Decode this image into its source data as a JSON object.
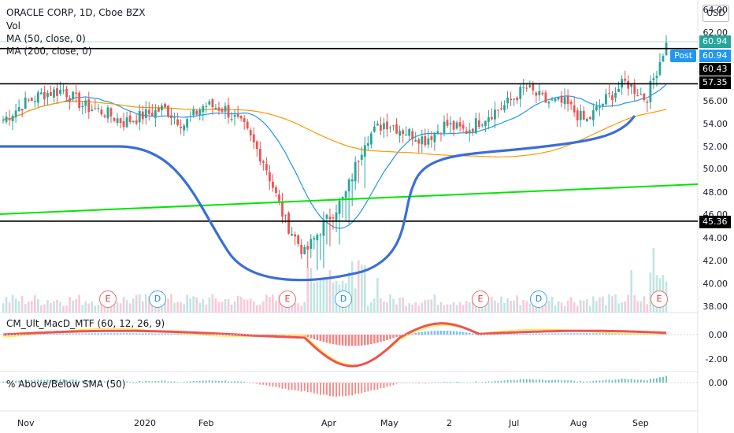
{
  "legend": {
    "symbol": "ORACLE CORP, 1D, Cboe BZX",
    "vol": "Vol",
    "ma50": "MA (50, close, 0)",
    "ma200": "MA (200, close, 0)"
  },
  "currency": "USD",
  "post_label": "Post",
  "price_axis": [
    "64.00",
    "62.00",
    "56.00",
    "54.00",
    "52.00",
    "50.00",
    "48.00",
    "46.00",
    "44.00",
    "42.00",
    "40.00",
    "38.00"
  ],
  "price_tags": [
    {
      "value": "60.94",
      "color": "#26a69a"
    },
    {
      "value": "60.94",
      "color": "#2196f3"
    },
    {
      "value": "60.43",
      "color": "#000000"
    },
    {
      "value": "57.35",
      "color": "#000000"
    },
    {
      "value": "45.36",
      "color": "#000000"
    }
  ],
  "macd_label": "CM_Ult_MacD_MTF (60, 12, 26, 9)",
  "macd_axis": [
    "0.00",
    "-2.00"
  ],
  "sma_label": "% Above/Below SMA (50)",
  "sma_axis": [
    "0.00"
  ],
  "time_axis": [
    "Nov",
    "2020",
    "Feb",
    "Apr",
    "May",
    "2",
    "Jul",
    "Aug",
    "Sep"
  ],
  "events": [
    {
      "type": "E",
      "color": "red"
    },
    {
      "type": "D",
      "color": "blue"
    },
    {
      "type": "E",
      "color": "red"
    },
    {
      "type": "D",
      "color": "blue"
    },
    {
      "type": "E",
      "color": "red"
    },
    {
      "type": "D",
      "color": "blue"
    },
    {
      "type": "E",
      "color": "red"
    }
  ],
  "colors": {
    "up": "#26a69a",
    "down": "#ef5350",
    "ma50": "#2196f3",
    "ma200": "#ff9800",
    "trend": "#00e600",
    "cup": "#3a6fd8"
  },
  "chart_data": {
    "type": "candlestick",
    "title": "ORACLE CORP, 1D, Cboe BZX",
    "ylim": [
      37,
      64.5
    ],
    "horizontal_levels": [
      60.43,
      57.35,
      45.36
    ],
    "last_price": 60.94,
    "x_ticks": [
      "Nov",
      "2020",
      "Feb",
      "Apr",
      "May",
      "2",
      "Jul",
      "Aug",
      "Sep"
    ],
    "close_series": [
      {
        "label": "Nov",
        "value": 54.2
      },
      {
        "label": "",
        "value": 55.6
      },
      {
        "label": "",
        "value": 56.5
      },
      {
        "label": "",
        "value": 56.8
      },
      {
        "label": "",
        "value": 55.4
      },
      {
        "label": "",
        "value": 54.9
      },
      {
        "label": "2020",
        "value": 54.0
      },
      {
        "label": "",
        "value": 54.6
      },
      {
        "label": "Feb",
        "value": 55.2
      },
      {
        "label": "",
        "value": 53.8
      },
      {
        "label": "",
        "value": 55.5
      },
      {
        "label": "",
        "value": 55.2
      },
      {
        "label": "",
        "value": 53.5
      },
      {
        "label": "",
        "value": 50.5
      },
      {
        "label": "",
        "value": 45.5
      },
      {
        "label": "",
        "value": 42.5
      },
      {
        "label": "",
        "value": 45.2
      },
      {
        "label": "Apr",
        "value": 47.5
      },
      {
        "label": "",
        "value": 52.5
      },
      {
        "label": "",
        "value": 54.0
      },
      {
        "label": "May",
        "value": 53.2
      },
      {
        "label": "",
        "value": 52.5
      },
      {
        "label": "",
        "value": 53.8
      },
      {
        "label": "2",
        "value": 53.2
      },
      {
        "label": "",
        "value": 54.5
      },
      {
        "label": "",
        "value": 55.5
      },
      {
        "label": "Jul",
        "value": 57.0
      },
      {
        "label": "",
        "value": 55.8
      },
      {
        "label": "",
        "value": 55.6
      },
      {
        "label": "Aug",
        "value": 54.0
      },
      {
        "label": "",
        "value": 56.0
      },
      {
        "label": "",
        "value": 57.5
      },
      {
        "label": "Sep",
        "value": 56.0
      },
      {
        "label": "",
        "value": 60.94
      }
    ]
  }
}
